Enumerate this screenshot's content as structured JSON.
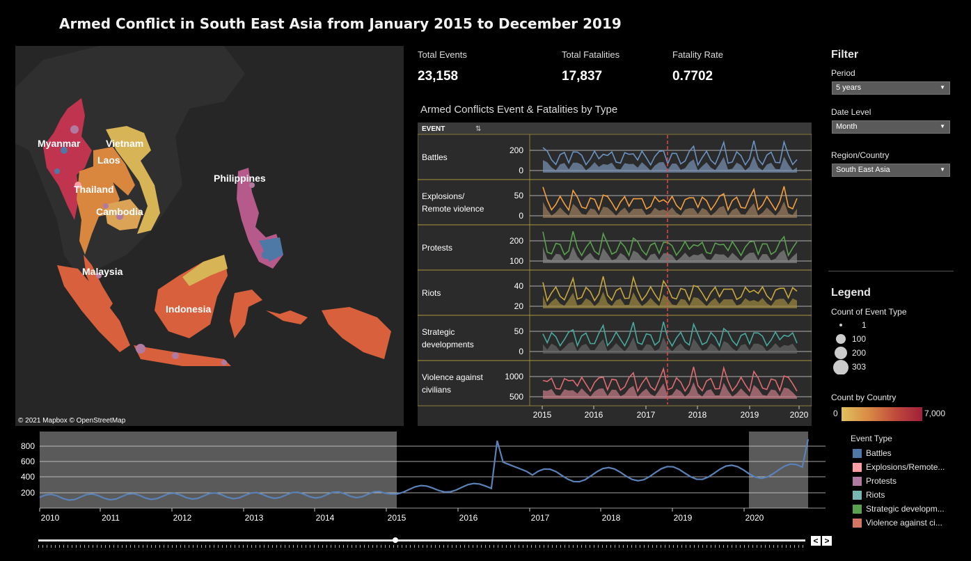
{
  "title": "Armed Conflict in South East Asia from January 2015 to December 2019",
  "map": {
    "labels": [
      "Myanmar",
      "Vietnam",
      "Laos",
      "Thailand",
      "Cambodia",
      "Philippines",
      "Malaysia",
      "Indonesia"
    ],
    "attribution": "© 2021 Mapbox  © OpenStreetMap"
  },
  "kpis": [
    {
      "label": "Total Events",
      "value": "23,158"
    },
    {
      "label": "Total Fatalities",
      "value": "17,837"
    },
    {
      "label": "Fatality Rate",
      "value": "0.7702"
    }
  ],
  "type_chart": {
    "title": "Armed Conflicts Event & Fatalities by Type",
    "header": "EVENT",
    "rows": [
      {
        "label": "Battles",
        "ticks": [
          "200",
          "0"
        ]
      },
      {
        "label": "Explosions/\nRemote violence",
        "ticks": [
          "50",
          "0"
        ]
      },
      {
        "label": "Protests",
        "ticks": [
          "200",
          "100"
        ]
      },
      {
        "label": "Riots",
        "ticks": [
          "40",
          "20"
        ]
      },
      {
        "label": "Strategic\ndevelopments",
        "ticks": [
          "50",
          "0"
        ]
      },
      {
        "label": "Violence against\ncivilians",
        "ticks": [
          "1000",
          "500"
        ]
      }
    ],
    "x_ticks": [
      "2015",
      "2016",
      "2017",
      "2018",
      "2019",
      "2020"
    ]
  },
  "filter": {
    "heading": "Filter",
    "period_label": "Period",
    "period_value": "5 years",
    "date_level_label": "Date Level",
    "date_level_value": "Month",
    "region_label": "Region/Country",
    "region_value": "South East Asia"
  },
  "legend": {
    "heading": "Legend",
    "count_label": "Count of Event Type",
    "sizes": [
      "1",
      "100",
      "200",
      "303"
    ],
    "country_label": "Count by Country",
    "country_min": "0",
    "country_max": "7,000"
  },
  "event_type": {
    "heading": "Event Type",
    "items": [
      {
        "label": "Battles",
        "color": "#4e79a7"
      },
      {
        "label": "Explosions/Remote...",
        "color": "#ff9da7"
      },
      {
        "label": "Protests",
        "color": "#b07aa1"
      },
      {
        "label": "Riots",
        "color": "#76b7b2"
      },
      {
        "label": "Strategic developm...",
        "color": "#59a14f"
      },
      {
        "label": "Violence against ci...",
        "color": "#d37562"
      }
    ]
  },
  "timeline": {
    "y_ticks": [
      "800",
      "600",
      "400",
      "200"
    ],
    "x_ticks": [
      "2010",
      "2011",
      "2012",
      "2013",
      "2014",
      "2015",
      "2016",
      "2017",
      "2018",
      "2019",
      "2020"
    ],
    "nav_prev": "<",
    "nav_next": ">"
  }
}
